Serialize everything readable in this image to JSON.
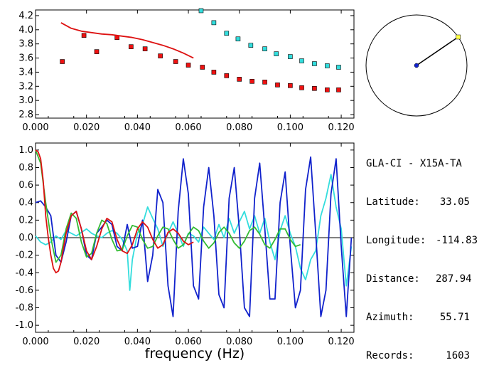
{
  "station": {
    "title": "GLA-CI - X15A-TA",
    "fields": [
      {
        "key": "Latitude:",
        "value": "33.05"
      },
      {
        "key": "Longitude:",
        "value": "-114.83"
      },
      {
        "key": "Distance:",
        "value": "287.94"
      },
      {
        "key": "Azimuth:",
        "value": "55.71"
      },
      {
        "key": "Records:",
        "value": "1603"
      }
    ]
  },
  "chart_data": [
    {
      "type": "scatter",
      "panel": "top",
      "xlim": [
        0.0,
        0.125
      ],
      "ylim": [
        2.75,
        4.28
      ],
      "x_ticks": [
        "0.000",
        "0.020",
        "0.040",
        "0.060",
        "0.080",
        "0.100",
        "0.120"
      ],
      "y_ticks": [
        "2.8",
        "3.0",
        "3.2",
        "3.4",
        "3.6",
        "3.8",
        "4.0",
        "4.2"
      ],
      "y_tick_values": [
        2.8,
        3.0,
        3.2,
        3.4,
        3.6,
        3.8,
        4.0,
        4.2
      ],
      "series": [
        {
          "color": "#ee1111",
          "marker": "square",
          "x": [
            0.0105,
            0.019,
            0.024,
            0.032,
            0.0375,
            0.043,
            0.049,
            0.055,
            0.06,
            0.0655,
            0.07,
            0.075,
            0.08,
            0.085,
            0.09,
            0.095,
            0.1,
            0.1045,
            0.1095,
            0.1145,
            0.119
          ],
          "y": [
            3.55,
            3.92,
            3.69,
            3.89,
            3.76,
            3.73,
            3.63,
            3.55,
            3.5,
            3.47,
            3.4,
            3.35,
            3.3,
            3.27,
            3.26,
            3.22,
            3.21,
            3.18,
            3.17,
            3.15,
            3.15
          ]
        },
        {
          "color": "#33dddd",
          "marker": "square",
          "x": [
            0.065,
            0.07,
            0.075,
            0.0795,
            0.0845,
            0.09,
            0.0945,
            0.1,
            0.1045,
            0.1095,
            0.1145,
            0.119
          ],
          "y": [
            4.27,
            4.1,
            3.95,
            3.87,
            3.78,
            3.73,
            3.66,
            3.62,
            3.56,
            3.52,
            3.49,
            3.47
          ]
        },
        {
          "color": "#dd1111",
          "marker": "line",
          "x": [
            0.01,
            0.014,
            0.018,
            0.022,
            0.026,
            0.03,
            0.034,
            0.038,
            0.042,
            0.046,
            0.05,
            0.054,
            0.058,
            0.062
          ],
          "y": [
            4.1,
            4.02,
            3.98,
            3.96,
            3.94,
            3.93,
            3.91,
            3.89,
            3.86,
            3.82,
            3.78,
            3.73,
            3.67,
            3.6
          ]
        }
      ]
    },
    {
      "type": "line",
      "panel": "bottom",
      "xlim": [
        0.0,
        0.125
      ],
      "ylim": [
        -1.08,
        1.08
      ],
      "xlabel": "frequency (Hz)",
      "x_ticks": [
        "0.000",
        "0.020",
        "0.040",
        "0.060",
        "0.080",
        "0.100",
        "0.120"
      ],
      "y_ticks": [
        "-1.0",
        "-0.8",
        "-0.6",
        "-0.4",
        "-0.2",
        "0.0",
        "0.2",
        "0.4",
        "0.6",
        "0.8",
        "1.0"
      ],
      "y_tick_values": [
        -1.0,
        -0.8,
        -0.6,
        -0.4,
        -0.2,
        0.0,
        0.2,
        0.4,
        0.6,
        0.8,
        1.0
      ],
      "zero_line": true,
      "series": [
        {
          "color": "#33dddd",
          "x": [
            0.0,
            0.002,
            0.004,
            0.006,
            0.008,
            0.01,
            0.012,
            0.014,
            0.016,
            0.018,
            0.02,
            0.022,
            0.024,
            0.026,
            0.028,
            0.03,
            0.032,
            0.034,
            0.036,
            0.037,
            0.038,
            0.04,
            0.042,
            0.044,
            0.046,
            0.048,
            0.05,
            0.052,
            0.054,
            0.056,
            0.058,
            0.06,
            0.062,
            0.064,
            0.066,
            0.068,
            0.07,
            0.072,
            0.074,
            0.076,
            0.078,
            0.08,
            0.082,
            0.084,
            0.086,
            0.088,
            0.09,
            0.092,
            0.094,
            0.096,
            0.098,
            0.1,
            0.102,
            0.104,
            0.106,
            0.108,
            0.11,
            0.112,
            0.114,
            0.116,
            0.118,
            0.12,
            0.122,
            0.124
          ],
          "y": [
            0.02,
            -0.05,
            -0.08,
            -0.05,
            0.02,
            -0.02,
            0.08,
            0.05,
            0.02,
            0.06,
            0.1,
            0.05,
            0.02,
            0.0,
            0.05,
            0.08,
            0.05,
            -0.02,
            -0.15,
            -0.6,
            -0.25,
            0.05,
            0.15,
            0.35,
            0.22,
            0.1,
            -0.1,
            0.05,
            0.18,
            0.05,
            -0.1,
            0.05,
            0.02,
            -0.05,
            0.12,
            0.05,
            -0.02,
            0.15,
            0.0,
            0.22,
            0.05,
            0.18,
            0.3,
            0.1,
            0.25,
            0.05,
            0.22,
            -0.05,
            -0.25,
            0.08,
            0.25,
            0.05,
            -0.1,
            -0.35,
            -0.48,
            -0.25,
            -0.15,
            0.25,
            0.45,
            0.72,
            0.35,
            0.1,
            -0.55,
            -0.1
          ]
        },
        {
          "color": "#1122cc",
          "x": [
            0.0,
            0.002,
            0.004,
            0.006,
            0.008,
            0.01,
            0.012,
            0.014,
            0.016,
            0.018,
            0.02,
            0.022,
            0.024,
            0.026,
            0.028,
            0.03,
            0.032,
            0.034,
            0.036,
            0.038,
            0.04,
            0.042,
            0.044,
            0.046,
            0.048,
            0.05,
            0.052,
            0.054,
            0.056,
            0.058,
            0.06,
            0.062,
            0.064,
            0.066,
            0.068,
            0.07,
            0.072,
            0.074,
            0.076,
            0.078,
            0.08,
            0.082,
            0.084,
            0.086,
            0.088,
            0.09,
            0.092,
            0.094,
            0.096,
            0.098,
            0.1,
            0.102,
            0.104,
            0.106,
            0.108,
            0.11,
            0.112,
            0.114,
            0.116,
            0.118,
            0.12,
            0.122,
            0.124
          ],
          "y": [
            0.4,
            0.42,
            0.35,
            0.25,
            -0.2,
            -0.28,
            -0.05,
            0.25,
            0.3,
            0.1,
            -0.2,
            -0.25,
            0.05,
            0.12,
            0.2,
            0.15,
            -0.1,
            -0.15,
            0.15,
            -0.12,
            -0.1,
            0.2,
            -0.5,
            -0.2,
            0.55,
            0.4,
            -0.55,
            -0.9,
            0.3,
            0.9,
            0.5,
            -0.55,
            -0.7,
            0.35,
            0.8,
            0.25,
            -0.65,
            -0.8,
            0.45,
            0.8,
            0.1,
            -0.8,
            -0.9,
            0.45,
            0.85,
            0.1,
            -0.7,
            -0.7,
            0.4,
            0.75,
            -0.1,
            -0.8,
            -0.6,
            0.55,
            0.92,
            0.05,
            -0.9,
            -0.6,
            0.5,
            0.9,
            -0.1,
            -0.9,
            0.0
          ]
        },
        {
          "color": "#33bb33",
          "x": [
            0.0,
            0.002,
            0.004,
            0.006,
            0.008,
            0.01,
            0.012,
            0.014,
            0.016,
            0.018,
            0.02,
            0.022,
            0.024,
            0.026,
            0.028,
            0.03,
            0.032,
            0.034,
            0.036,
            0.038,
            0.04,
            0.042,
            0.044,
            0.046,
            0.048,
            0.05,
            0.052,
            0.054,
            0.056,
            0.058,
            0.06,
            0.062,
            0.064,
            0.066,
            0.068,
            0.07,
            0.072,
            0.074,
            0.076,
            0.078,
            0.08,
            0.082,
            0.084,
            0.086,
            0.088,
            0.09,
            0.092,
            0.094,
            0.096,
            0.098,
            0.1,
            0.102,
            0.104
          ],
          "y": [
            1.0,
            0.85,
            0.4,
            0.0,
            -0.28,
            -0.2,
            0.1,
            0.28,
            0.22,
            -0.05,
            -0.22,
            -0.18,
            0.05,
            0.2,
            0.16,
            -0.02,
            -0.15,
            -0.14,
            0.02,
            0.14,
            0.12,
            -0.02,
            -0.12,
            -0.1,
            0.02,
            0.12,
            0.1,
            -0.02,
            -0.12,
            -0.08,
            0.04,
            0.12,
            0.08,
            -0.04,
            -0.12,
            -0.06,
            0.06,
            0.12,
            0.05,
            -0.06,
            -0.12,
            -0.04,
            0.08,
            0.12,
            0.04,
            -0.08,
            -0.12,
            -0.02,
            0.1,
            0.1,
            -0.02,
            -0.1,
            -0.08
          ]
        },
        {
          "color": "#dd1111",
          "x": [
            0.0,
            0.001,
            0.002,
            0.003,
            0.004,
            0.005,
            0.006,
            0.007,
            0.008,
            0.009,
            0.01,
            0.012,
            0.014,
            0.016,
            0.018,
            0.02,
            0.022,
            0.024,
            0.026,
            0.028,
            0.03,
            0.032,
            0.034,
            0.036,
            0.038,
            0.04,
            0.042,
            0.044,
            0.046,
            0.048,
            0.05,
            0.052,
            0.054,
            0.056,
            0.058,
            0.06,
            0.062
          ],
          "y": [
            1.0,
            0.98,
            0.9,
            0.65,
            0.25,
            0.0,
            -0.2,
            -0.35,
            -0.4,
            -0.38,
            -0.28,
            0.05,
            0.25,
            0.3,
            0.1,
            -0.15,
            -0.25,
            -0.1,
            0.1,
            0.22,
            0.18,
            -0.02,
            -0.15,
            -0.18,
            -0.08,
            0.1,
            0.18,
            0.12,
            -0.02,
            -0.12,
            -0.08,
            0.06,
            0.1,
            0.05,
            -0.04,
            -0.08,
            -0.05
          ]
        }
      ]
    }
  ],
  "map_inset": {
    "azimuth_deg": 55.71,
    "center_color": "#1122cc",
    "station_color": "#ffff44"
  }
}
